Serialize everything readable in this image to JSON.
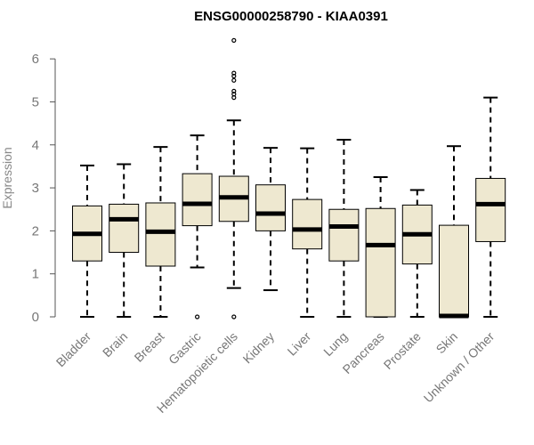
{
  "chart_data": {
    "type": "boxplot",
    "title": "ENSG00000258790 - KIAA0391",
    "xlabel": "",
    "ylabel": "Expression",
    "ylim": [
      0,
      6.5
    ],
    "yticks": [
      0,
      1,
      2,
      3,
      4,
      5,
      6
    ],
    "box_color": "#EEE8D0",
    "categories": [
      "Bladder",
      "Brain",
      "Breast",
      "Gastric",
      "Hematopoietic cells",
      "Kidney",
      "Liver",
      "Lung",
      "Pancreas",
      "Prostate",
      "Skin",
      "Unknown / Other"
    ],
    "series": [
      {
        "name": "Bladder",
        "min": 0.0,
        "q1": 1.3,
        "median": 1.93,
        "q3": 2.58,
        "max": 3.52,
        "outliers": []
      },
      {
        "name": "Brain",
        "min": 0.0,
        "q1": 1.5,
        "median": 2.27,
        "q3": 2.62,
        "max": 3.55,
        "outliers": []
      },
      {
        "name": "Breast",
        "min": 0.0,
        "q1": 1.18,
        "median": 1.98,
        "q3": 2.65,
        "max": 3.95,
        "outliers": []
      },
      {
        "name": "Gastric",
        "min": 1.15,
        "q1": 2.12,
        "median": 2.63,
        "q3": 3.33,
        "max": 4.22,
        "outliers": [
          0.0
        ]
      },
      {
        "name": "Hematopoietic cells",
        "min": 0.67,
        "q1": 2.22,
        "median": 2.78,
        "q3": 3.27,
        "max": 4.57,
        "outliers": [
          0.0,
          5.1,
          5.18,
          5.25,
          5.5,
          5.6,
          5.67,
          6.43
        ]
      },
      {
        "name": "Kidney",
        "min": 0.62,
        "q1": 2.0,
        "median": 2.4,
        "q3": 3.07,
        "max": 3.93,
        "outliers": []
      },
      {
        "name": "Liver",
        "min": 0.0,
        "q1": 1.58,
        "median": 2.03,
        "q3": 2.73,
        "max": 3.92,
        "outliers": []
      },
      {
        "name": "Lung",
        "min": 0.0,
        "q1": 1.3,
        "median": 2.1,
        "q3": 2.5,
        "max": 4.12,
        "outliers": []
      },
      {
        "name": "Pancreas",
        "min": 0.0,
        "q1": 0.0,
        "median": 1.67,
        "q3": 2.52,
        "max": 3.25,
        "outliers": []
      },
      {
        "name": "Prostate",
        "min": 0.0,
        "q1": 1.23,
        "median": 1.92,
        "q3": 2.6,
        "max": 2.95,
        "outliers": []
      },
      {
        "name": "Skin",
        "min": 0.0,
        "q1": 0.0,
        "median": 0.02,
        "q3": 2.13,
        "max": 3.97,
        "outliers": []
      },
      {
        "name": "Unknown / Other",
        "min": 0.0,
        "q1": 1.75,
        "median": 2.62,
        "q3": 3.22,
        "max": 5.1,
        "outliers": []
      }
    ]
  }
}
